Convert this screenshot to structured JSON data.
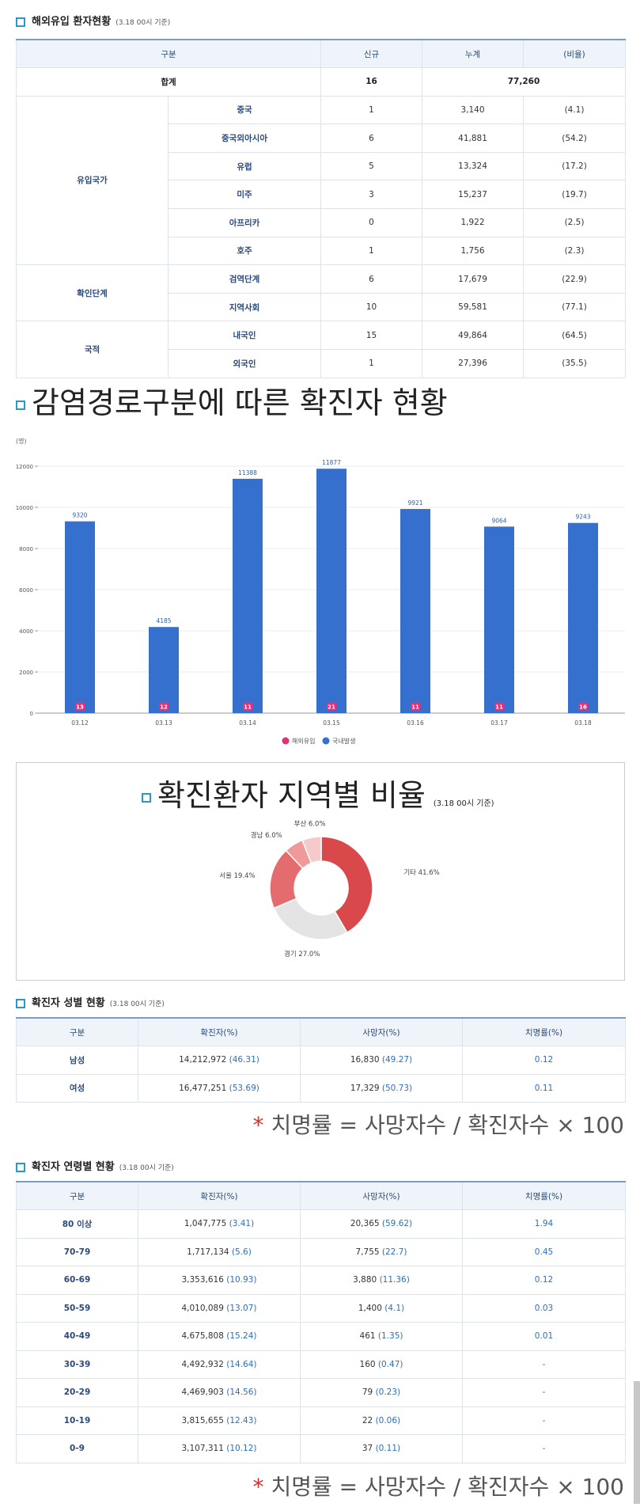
{
  "section1": {
    "title": "해외유입 환자현황",
    "sub": "(3.18 00시 기준)"
  },
  "table1": {
    "headers": [
      "구분",
      "신규",
      "누계",
      "(비율)"
    ],
    "total": {
      "label": "합계",
      "new": "16",
      "cum": "77,260"
    },
    "groups": [
      {
        "name": "유입국가",
        "rows": [
          {
            "label": "중국",
            "new": "1",
            "cum": "3,140",
            "ratio": "(4.1)"
          },
          {
            "label": "중국외아시아",
            "new": "6",
            "cum": "41,881",
            "ratio": "(54.2)"
          },
          {
            "label": "유럽",
            "new": "5",
            "cum": "13,324",
            "ratio": "(17.2)"
          },
          {
            "label": "미주",
            "new": "3",
            "cum": "15,237",
            "ratio": "(19.7)"
          },
          {
            "label": "아프리카",
            "new": "0",
            "cum": "1,922",
            "ratio": "(2.5)"
          },
          {
            "label": "호주",
            "new": "1",
            "cum": "1,756",
            "ratio": "(2.3)"
          }
        ]
      },
      {
        "name": "확인단계",
        "rows": [
          {
            "label": "검역단계",
            "new": "6",
            "cum": "17,679",
            "ratio": "(22.9)"
          },
          {
            "label": "지역사회",
            "new": "10",
            "cum": "59,581",
            "ratio": "(77.1)"
          }
        ]
      },
      {
        "name": "국적",
        "rows": [
          {
            "label": "내국인",
            "new": "15",
            "cum": "49,864",
            "ratio": "(64.5)"
          },
          {
            "label": "외국인",
            "new": "1",
            "cum": "27,396",
            "ratio": "(35.5)"
          }
        ]
      }
    ]
  },
  "section2": {
    "title": "감염경로구분에 따른 확진자 현황"
  },
  "section3": {
    "title": "확진환자 지역별 비율",
    "sub": "(3.18 00시 기준)"
  },
  "section4": {
    "title": "확진자 성별 현황",
    "sub": "(3.18 00시 기준)"
  },
  "table2": {
    "headers": [
      "구분",
      "확진자(%)",
      "사망자(%)",
      "치명률(%)"
    ],
    "rows": [
      {
        "label": "남성",
        "conf": "14,212,972",
        "conf_pct": "(46.31)",
        "death": "16,830",
        "death_pct": "(49.27)",
        "fatal": "0.12"
      },
      {
        "label": "여성",
        "conf": "16,477,251",
        "conf_pct": "(53.69)",
        "death": "17,329",
        "death_pct": "(50.73)",
        "fatal": "0.11"
      }
    ]
  },
  "note_text": "치명률 = 사망자수 / 확진자수 × 100",
  "note_star": "*",
  "section5": {
    "title": "확진자 연령별 현황",
    "sub": "(3.18 00시 기준)"
  },
  "table3": {
    "headers": [
      "구분",
      "확진자(%)",
      "사망자(%)",
      "치명률(%)"
    ],
    "rows": [
      {
        "label": "80 이상",
        "conf": "1,047,775",
        "conf_pct": "(3.41)",
        "death": "20,365",
        "death_pct": "(59.62)",
        "fatal": "1.94"
      },
      {
        "label": "70-79",
        "conf": "1,717,134",
        "conf_pct": "(5.6)",
        "death": "7,755",
        "death_pct": "(22.7)",
        "fatal": "0.45"
      },
      {
        "label": "60-69",
        "conf": "3,353,616",
        "conf_pct": "(10.93)",
        "death": "3,880",
        "death_pct": "(11.36)",
        "fatal": "0.12"
      },
      {
        "label": "50-59",
        "conf": "4,010,089",
        "conf_pct": "(13.07)",
        "death": "1,400",
        "death_pct": "(4.1)",
        "fatal": "0.03"
      },
      {
        "label": "40-49",
        "conf": "4,675,808",
        "conf_pct": "(15.24)",
        "death": "461",
        "death_pct": "(1.35)",
        "fatal": "0.01"
      },
      {
        "label": "30-39",
        "conf": "4,492,932",
        "conf_pct": "(14.64)",
        "death": "160",
        "death_pct": "(0.47)",
        "fatal": "-"
      },
      {
        "label": "20-29",
        "conf": "4,469,903",
        "conf_pct": "(14.56)",
        "death": "79",
        "death_pct": "(0.23)",
        "fatal": "-"
      },
      {
        "label": "10-19",
        "conf": "3,815,655",
        "conf_pct": "(12.43)",
        "death": "22",
        "death_pct": "(0.06)",
        "fatal": "-"
      },
      {
        "label": "0-9",
        "conf": "3,107,311",
        "conf_pct": "(10.12)",
        "death": "37",
        "death_pct": "(0.11)",
        "fatal": "-"
      }
    ]
  },
  "chart_data": [
    {
      "type": "bar",
      "unit_label": "(명)",
      "categories": [
        "03.12",
        "03.13",
        "03.14",
        "03.15",
        "03.16",
        "03.17",
        "03.18"
      ],
      "series": [
        {
          "name": "해외유입",
          "values": [
            13,
            12,
            11,
            21,
            11,
            11,
            16
          ],
          "color": "#e0317a"
        },
        {
          "name": "국내발생",
          "values": [
            9320,
            4185,
            11388,
            11877,
            9921,
            9064,
            9243
          ],
          "color": "#3570cf"
        }
      ],
      "yticks": [
        0,
        2000,
        4000,
        6000,
        8000,
        10000,
        12000
      ],
      "ylim": [
        0,
        12000
      ],
      "legend": "bottom-center",
      "grid": true
    },
    {
      "type": "pie",
      "title": "확진환자 지역별 비율",
      "donut": true,
      "slices": [
        {
          "label": "기타",
          "value": 41.6,
          "text": "기타 41.6%",
          "color": "#d9484a"
        },
        {
          "label": "경기",
          "value": 27.0,
          "text": "경기 27.0%",
          "color": "#e4e4e4"
        },
        {
          "label": "서울",
          "value": 19.4,
          "text": "서울 19.4%",
          "color": "#e46c6e"
        },
        {
          "label": "경남",
          "value": 6.0,
          "text": "경남 6.0%",
          "color": "#ee9a9b"
        },
        {
          "label": "부산",
          "value": 6.0,
          "text": "부산 6.0%",
          "color": "#f6c9ca"
        }
      ]
    }
  ]
}
